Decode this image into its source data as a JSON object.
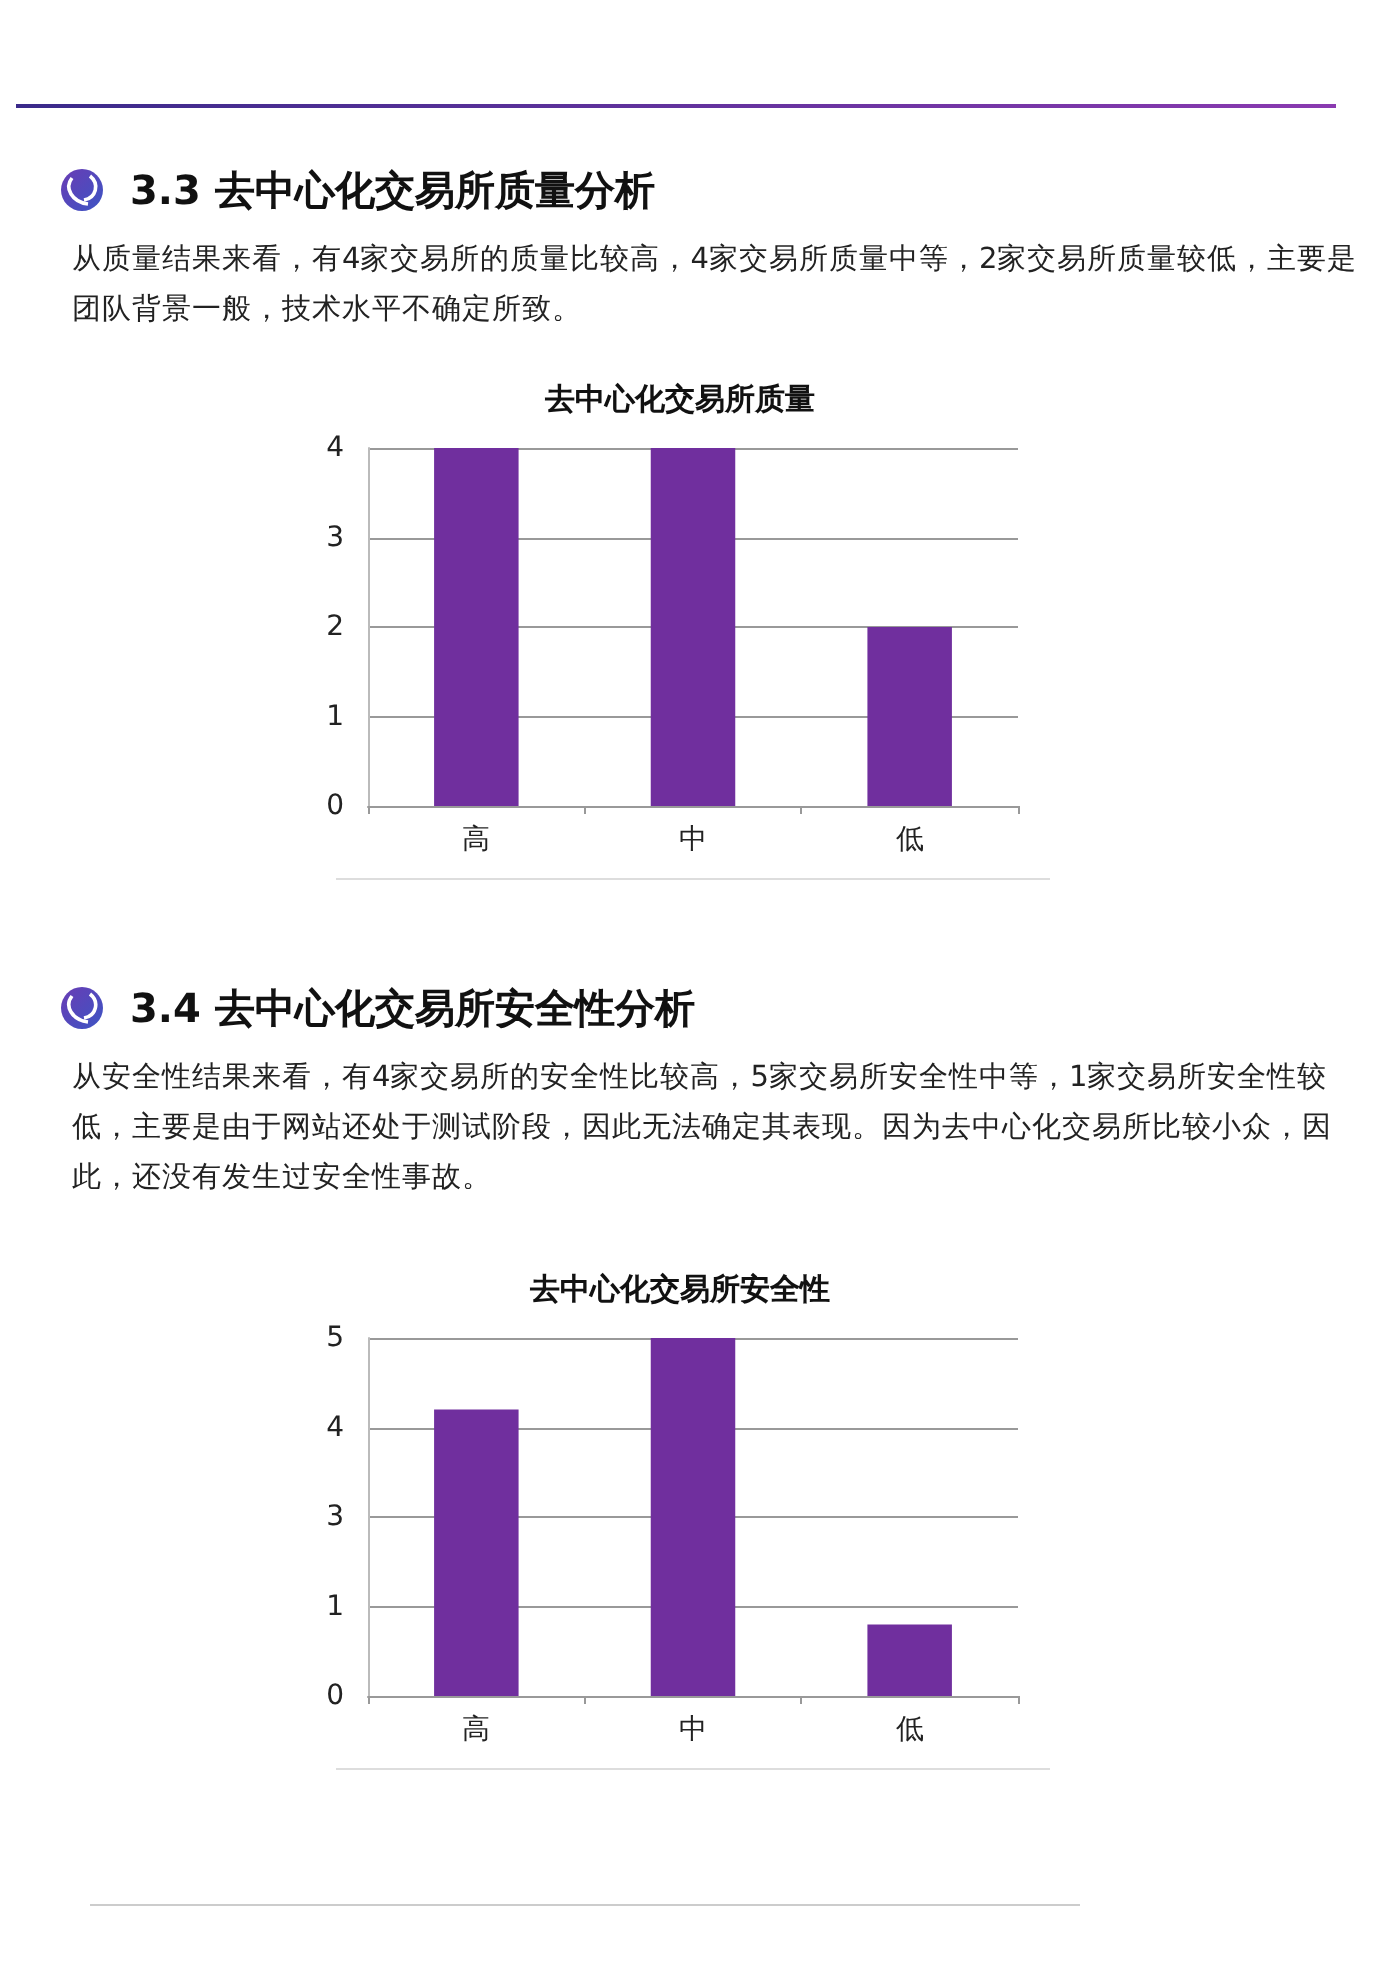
{
  "chart_data": [
    {
      "type": "bar",
      "title": "去中心化交易所质量",
      "annotations": [
        "3.3 去中心化交易所质量分析",
        "从质量结果来看，有4家交易所的质量比较高，4家交易所质量中等，2家交易所质量较低，主要是团队背景一般，技术水平不确定所致。"
      ],
      "categories": [
        "高",
        "中",
        "低"
      ],
      "values": [
        4,
        4,
        2
      ],
      "color": "#702f9e",
      "ylim": [
        0,
        4
      ],
      "yticks": [
        0,
        1,
        2,
        3,
        4
      ],
      "grid": "y"
    },
    {
      "type": "bar",
      "title": "去中心化交易所安全性",
      "annotations": [
        "3.4 去中心化交易所安全性分析",
        "从安全性结果来看，有4家交易所的安全性比较高，5家交易所安全性中等，1家交易所安全性较低，主要是由于网站还处于测试阶段，因此无法确定其表现。因为去中心化交易所比较小众，因此，还没有发生过安全性事故。"
      ],
      "categories": [
        "高",
        "中",
        "低"
      ],
      "values": [
        4,
        5,
        1
      ],
      "color": "#702f9e",
      "ylim": [
        0,
        5
      ],
      "yticks": [
        0,
        {
          "value": 1.25,
          "label": "1"
        },
        {
          "value": 2.5,
          "label": "3"
        },
        {
          "value": 3.75,
          "label": "4"
        },
        5
      ],
      "grid": "y"
    }
  ]
}
